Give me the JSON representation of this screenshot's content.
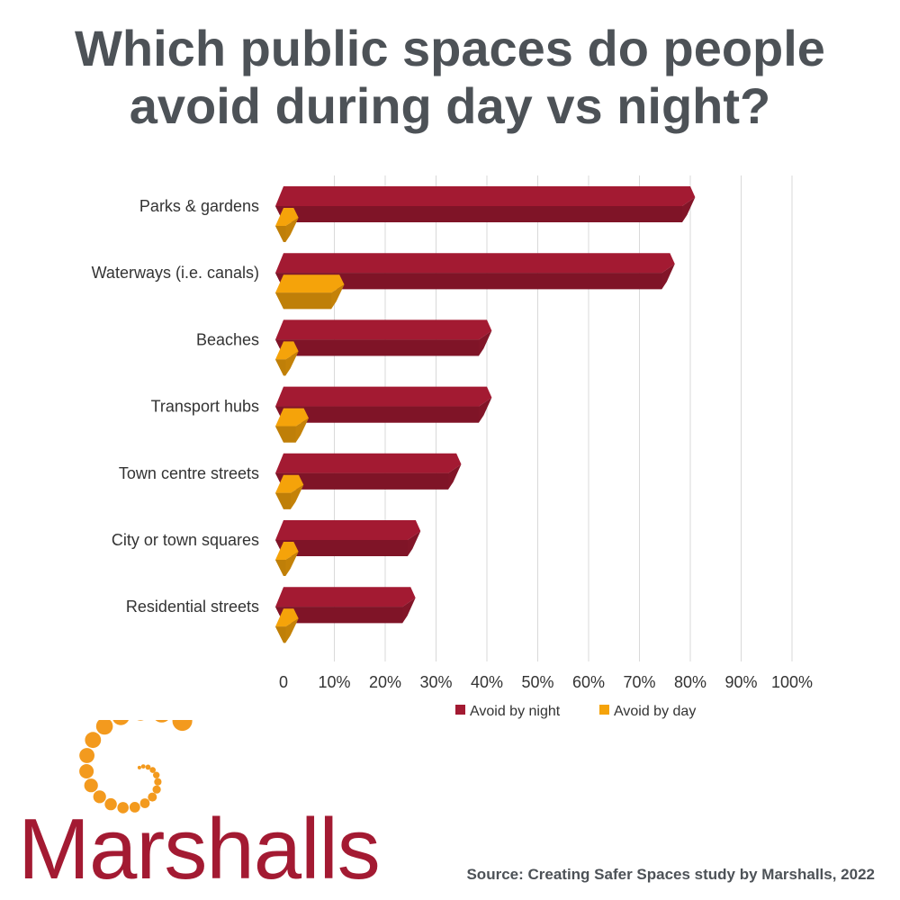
{
  "title_lines": [
    "Which public spaces do people",
    "avoid during day vs night?"
  ],
  "chart_data": {
    "type": "bar",
    "orientation": "horizontal",
    "title": "Which public spaces do people avoid during day vs night?",
    "categories": [
      "Parks & gardens",
      "Waterways (i.e. canals)",
      "Beaches",
      "Transport hubs",
      "Town centre streets",
      "City or town squares",
      "Residential streets"
    ],
    "series": [
      {
        "name": "Avoid by night",
        "color": "#a31a32",
        "values": [
          80,
          76,
          40,
          40,
          34,
          26,
          25
        ]
      },
      {
        "name": "Avoid by day",
        "color": "#f5a30a",
        "values": [
          2,
          11,
          2,
          4,
          3,
          2,
          2
        ]
      }
    ],
    "xlim": [
      0,
      100
    ],
    "x_ticks": [
      "0",
      "10%",
      "20%",
      "30%",
      "40%",
      "50%",
      "60%",
      "70%",
      "80%",
      "90%",
      "100%"
    ],
    "grid": true,
    "legend": "bottom-right"
  },
  "brand": {
    "name": "Marshalls",
    "logo_icon": "orange-dot-spiral-icon",
    "color": "#a31a32",
    "logo_color": "#f39a1e"
  },
  "source": "Source: Creating Safer Spaces study by Marshalls, 2022"
}
